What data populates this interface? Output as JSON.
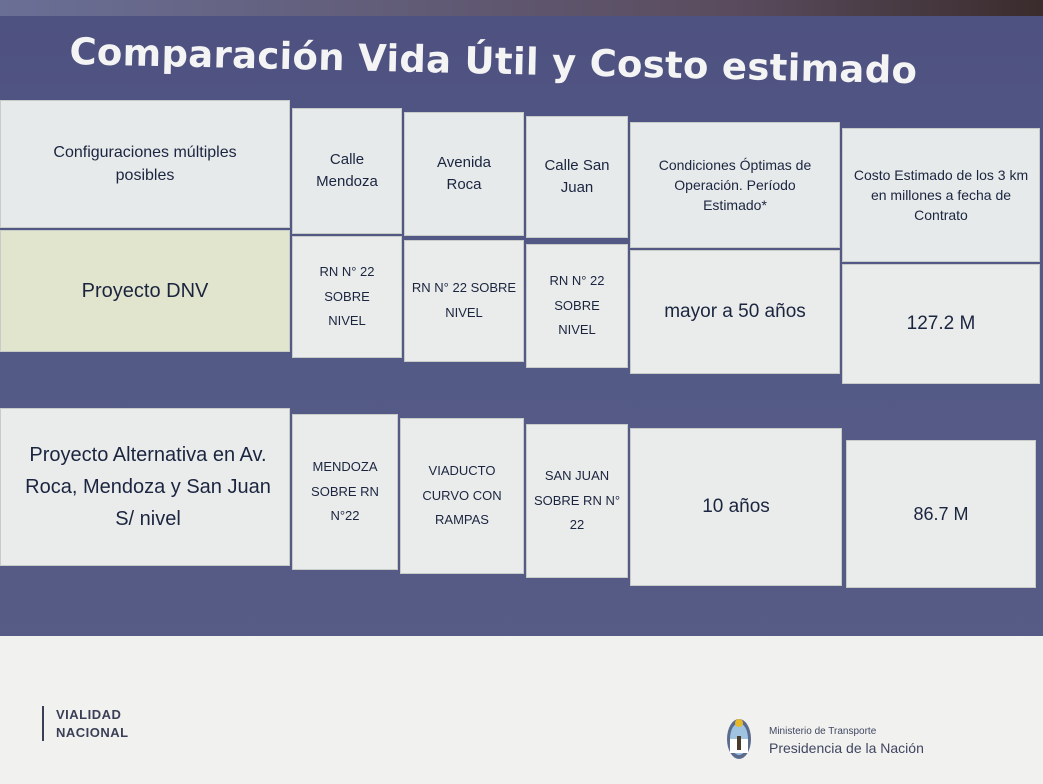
{
  "title": "Comparación Vida Útil y Costo estimado",
  "headers": {
    "config": "Configuraciones múltiples posibles",
    "mendoza": "Calle Mendoza",
    "roca": "Avenida Roca",
    "sanjuan": "Calle San Juan",
    "condiciones": "Condiciones Óptimas de Operación. Período Estimado*",
    "costo": "Costo Estimado de los 3 km en millones a fecha de Contrato"
  },
  "rows": [
    {
      "name": "Proyecto DNV",
      "mendoza": "RN N° 22 SOBRE NIVEL",
      "roca": "RN N° 22 SOBRE NIVEL",
      "sanjuan": "RN N° 22 SOBRE NIVEL",
      "condiciones": "mayor a 50 años",
      "costo": "127.2 M"
    },
    {
      "name": "Proyecto Alternativa en Av. Roca, Mendoza y San Juan S/ nivel",
      "mendoza": "MENDOZA SOBRE RN N°22",
      "roca": "VIADUCTO CURVO CON RAMPAS",
      "sanjuan": "SAN JUAN SOBRE RN N° 22",
      "condiciones": "10 años",
      "costo": "86.7 M"
    }
  ],
  "footer": {
    "vialidad_line1": "VIALIDAD",
    "vialidad_line2": "NACIONAL",
    "ministerio": "Ministerio de Transporte",
    "presidencia": "Presidencia de la Nación"
  }
}
